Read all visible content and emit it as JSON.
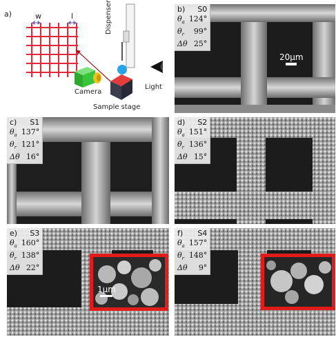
{
  "schematic": {
    "label": "a)",
    "w_label": "w",
    "l_label": "l",
    "camera_label": "Camera",
    "stage_label": "Sample stage",
    "light_label": "Light",
    "tower_label": "Dispenser tower"
  },
  "panels": [
    {
      "label": "b)",
      "sample": "S0",
      "theta_a": "124°",
      "theta_r": "99°",
      "delta_theta": "25°",
      "scale_bar": "20μm",
      "inset_scale": ""
    },
    {
      "label": "c)",
      "sample": "S1",
      "theta_a": "137°",
      "theta_r": "121°",
      "delta_theta": "16°",
      "scale_bar": "",
      "inset_scale": ""
    },
    {
      "label": "d)",
      "sample": "S2",
      "theta_a": "151°",
      "theta_r": "136°",
      "delta_theta": "15°",
      "scale_bar": "",
      "inset_scale": ""
    },
    {
      "label": "e)",
      "sample": "S3",
      "theta_a": "160°",
      "theta_r": "138°",
      "delta_theta": "22°",
      "scale_bar": "",
      "inset_scale": "1μm"
    },
    {
      "label": "f)",
      "sample": "S4",
      "theta_a": "157°",
      "theta_r": "148°",
      "delta_theta": "9°",
      "scale_bar": "",
      "inset_scale": ""
    }
  ],
  "symbols": {
    "theta": "θ",
    "delta_theta": "Δθ",
    "sub_a": "a",
    "sub_r": "r"
  },
  "colors": {
    "grid": "#e02a3a",
    "inset_border": "#e31b1b",
    "camera": "#3ac43a",
    "lens": "#f2c21b",
    "stage_top": "#e63b3b",
    "droplet": "#29a3e8"
  }
}
